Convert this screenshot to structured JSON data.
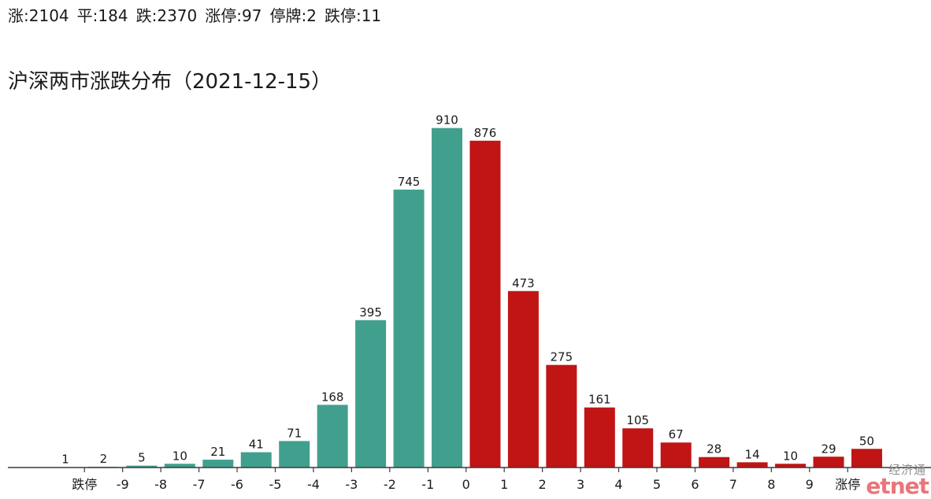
{
  "summary": {
    "separator": ":",
    "items": [
      {
        "label": "涨",
        "value": 2104
      },
      {
        "label": "平",
        "value": 184
      },
      {
        "label": "跌",
        "value": 2370
      },
      {
        "label": "涨停",
        "value": 97
      },
      {
        "label": "停牌",
        "value": 2
      },
      {
        "label": "跌停",
        "value": 11
      }
    ]
  },
  "chart_data": {
    "type": "bar",
    "title": "沪深两市涨跌分布（2021-12-15）",
    "xlabel": "",
    "ylabel": "",
    "x_tick_labels": [
      "跌停",
      "-9",
      "-8",
      "-7",
      "-6",
      "-5",
      "-4",
      "-3",
      "-2",
      "-1",
      "0",
      "1",
      "2",
      "3",
      "4",
      "5",
      "6",
      "7",
      "8",
      "9",
      "涨停"
    ],
    "series": [
      {
        "color": "#41A08D",
        "values": [
          1,
          2,
          5,
          10,
          21,
          41,
          71,
          168,
          395,
          745,
          910
        ]
      },
      {
        "color": "#C11414",
        "values": [
          876,
          473,
          275,
          161,
          105,
          67,
          28,
          14,
          10,
          29,
          50
        ]
      }
    ],
    "ylim": [
      0,
      1000
    ],
    "grid": false,
    "y_axis_visible": false,
    "data_labels": true
  },
  "watermark": {
    "brand_cn": "经济通",
    "logo": "etnet"
  }
}
